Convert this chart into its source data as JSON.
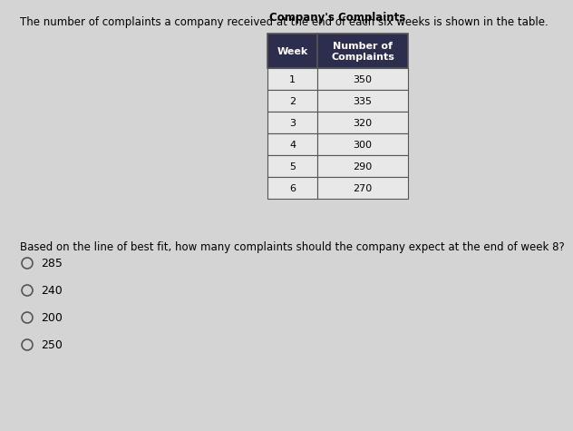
{
  "title_text": "The number of complaints a company received at the end of each six weeks is shown in the table.",
  "table_title": "Company's Complaints",
  "col_headers": [
    "Week",
    "Number of\nComplaints"
  ],
  "table_data": [
    [
      1,
      350
    ],
    [
      2,
      335
    ],
    [
      3,
      320
    ],
    [
      4,
      300
    ],
    [
      5,
      290
    ],
    [
      6,
      270
    ]
  ],
  "question_text": "Based on the line of best fit, how many complaints should the company expect at the end of week 8?",
  "answer_choices": [
    "285",
    "240",
    "200",
    "250"
  ],
  "bg_color": "#d4d4d4",
  "table_header_bg": "#2d2d4e",
  "table_header_text": "#ffffff",
  "table_row_bg": "#e8e8e8",
  "table_border_color": "#555555",
  "title_fontsize": 8.5,
  "question_fontsize": 8.5,
  "answer_fontsize": 9,
  "table_fontsize": 8,
  "table_title_fontsize": 8.5
}
